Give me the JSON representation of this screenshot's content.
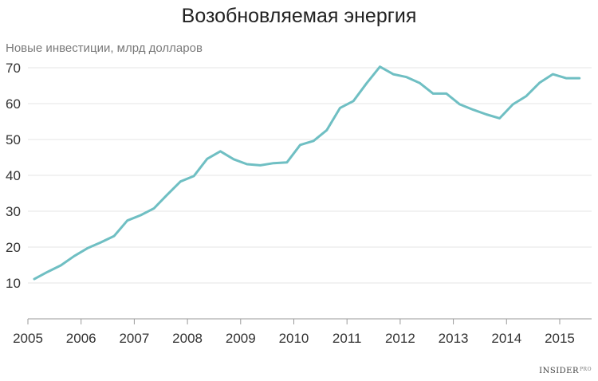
{
  "chart_data": {
    "type": "line",
    "title": "Возобновляемая энергия",
    "ylabel": "Новые инвестиции, млрд долларов",
    "xlabel": "",
    "xlim": [
      2005,
      2015.6
    ],
    "ylim": [
      0,
      70
    ],
    "y_ticks": [
      10,
      20,
      30,
      40,
      50,
      60,
      70
    ],
    "x_ticks": [
      2005,
      2006,
      2007,
      2008,
      2009,
      2010,
      2011,
      2012,
      2013,
      2014,
      2015
    ],
    "grid": "horizontal",
    "line_color": "#6fbfc3",
    "series": [
      {
        "x": [
          2005.12,
          2005.37,
          2005.62,
          2005.87,
          2006.12,
          2006.37,
          2006.62,
          2006.87,
          2007.12,
          2007.37,
          2007.62,
          2007.87,
          2008.12,
          2008.37,
          2008.62,
          2008.87,
          2009.12,
          2009.37,
          2009.62,
          2009.87,
          2010.12,
          2010.37,
          2010.62,
          2010.87,
          2011.12,
          2011.37,
          2011.62,
          2011.87,
          2012.12,
          2012.37,
          2012.62,
          2012.87,
          2013.12,
          2013.37,
          2013.62,
          2013.87,
          2014.12,
          2014.37,
          2014.62,
          2014.87,
          2015.12,
          2015.37
        ],
        "values": [
          11.1,
          13.1,
          14.9,
          17.5,
          19.7,
          21.3,
          23.1,
          27.4,
          28.9,
          30.8,
          34.6,
          38.3,
          39.8,
          44.6,
          46.7,
          44.5,
          43.1,
          42.8,
          43.4,
          43.6,
          48.5,
          49.6,
          52.6,
          58.8,
          60.7,
          65.7,
          70.3,
          68.2,
          67.4,
          65.7,
          62.8,
          62.8,
          59.8,
          58.3,
          57.0,
          55.9,
          59.8,
          62.1,
          65.8,
          68.2,
          67.1,
          67.1
        ]
      }
    ]
  },
  "branding": {
    "logo_text": "INSIDER",
    "logo_sup": "PRO"
  }
}
